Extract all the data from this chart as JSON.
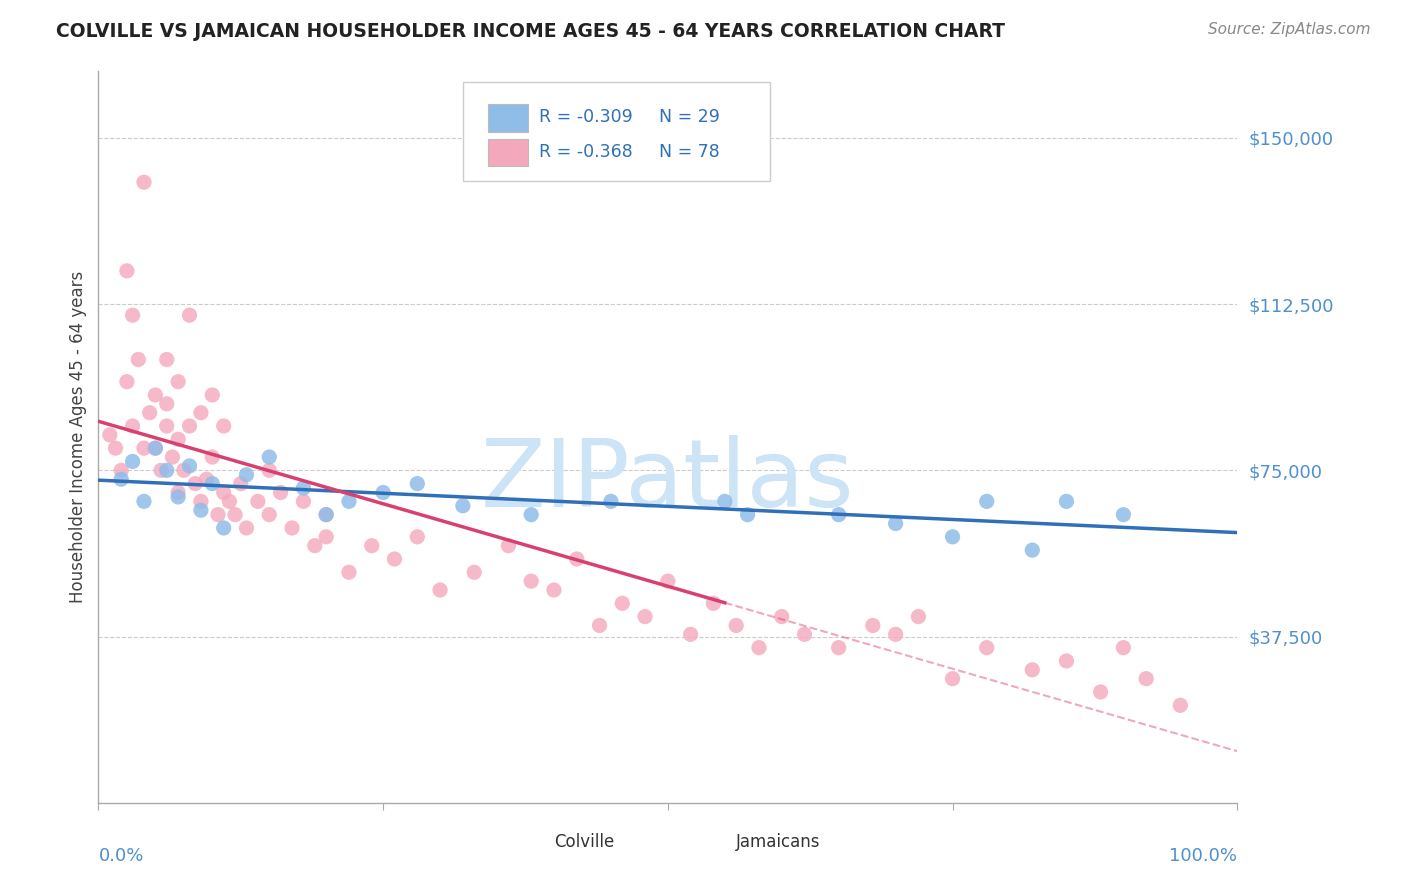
{
  "title": "COLVILLE VS JAMAICAN HOUSEHOLDER INCOME AGES 45 - 64 YEARS CORRELATION CHART",
  "source": "Source: ZipAtlas.com",
  "ylabel": "Householder Income Ages 45 - 64 years",
  "ytick_labels": [
    "$37,500",
    "$75,000",
    "$112,500",
    "$150,000"
  ],
  "ytick_values": [
    37500,
    75000,
    112500,
    150000
  ],
  "ylim": [
    0,
    165000
  ],
  "xlim": [
    0.0,
    100.0
  ],
  "colville_color": "#90bce8",
  "jamaican_color": "#f4a8bc",
  "blue_line_color": "#3070b8",
  "pink_line_color": "#d84070",
  "watermark_color": "#cce4f5",
  "ytick_color": "#5090d0",
  "xtick_color": "#5090d0",
  "title_color": "#222222",
  "source_color": "#888888",
  "ylabel_color": "#444444",
  "grid_color": "#cccccc",
  "spine_color": "#aaaaaa",
  "legend_edge_color": "#cccccc",
  "legend_r_color": "#3070b8",
  "legend_n_color": "#3070b8",
  "legend_r2_color": "#d84070",
  "colville_x": [
    2,
    3,
    4,
    5,
    6,
    7,
    8,
    9,
    10,
    11,
    13,
    15,
    18,
    20,
    22,
    25,
    28,
    32,
    38,
    45,
    55,
    57,
    65,
    70,
    75,
    78,
    82,
    85,
    90
  ],
  "colville_y": [
    73000,
    77000,
    68000,
    80000,
    75000,
    69000,
    76000,
    66000,
    72000,
    62000,
    74000,
    78000,
    71000,
    65000,
    68000,
    70000,
    72000,
    67000,
    65000,
    68000,
    68000,
    65000,
    65000,
    63000,
    60000,
    68000,
    57000,
    68000,
    65000
  ],
  "jamaican_x": [
    1,
    1.5,
    2,
    2.5,
    3,
    3,
    3.5,
    4,
    4.5,
    5,
    5,
    5.5,
    6,
    6,
    6.5,
    7,
    7,
    7.5,
    8,
    8.5,
    9,
    9.5,
    10,
    10.5,
    11,
    11.5,
    12,
    12.5,
    13,
    14,
    15,
    15,
    16,
    17,
    18,
    19,
    20,
    20,
    22,
    24,
    26,
    28,
    30,
    33,
    36,
    38,
    40,
    42,
    44,
    46,
    48,
    50,
    52,
    54,
    56,
    58,
    60,
    62,
    65,
    68,
    70,
    72,
    75,
    78,
    82,
    85,
    88,
    90,
    92,
    95,
    2.5,
    4,
    6,
    7,
    8,
    9,
    10,
    11
  ],
  "jamaican_y": [
    83000,
    80000,
    75000,
    95000,
    85000,
    110000,
    100000,
    80000,
    88000,
    80000,
    92000,
    75000,
    90000,
    85000,
    78000,
    82000,
    70000,
    75000,
    85000,
    72000,
    68000,
    73000,
    78000,
    65000,
    70000,
    68000,
    65000,
    72000,
    62000,
    68000,
    75000,
    65000,
    70000,
    62000,
    68000,
    58000,
    60000,
    65000,
    52000,
    58000,
    55000,
    60000,
    48000,
    52000,
    58000,
    50000,
    48000,
    55000,
    40000,
    45000,
    42000,
    50000,
    38000,
    45000,
    40000,
    35000,
    42000,
    38000,
    35000,
    40000,
    38000,
    42000,
    28000,
    35000,
    30000,
    32000,
    25000,
    35000,
    28000,
    22000,
    120000,
    140000,
    100000,
    95000,
    110000,
    88000,
    92000,
    85000
  ]
}
